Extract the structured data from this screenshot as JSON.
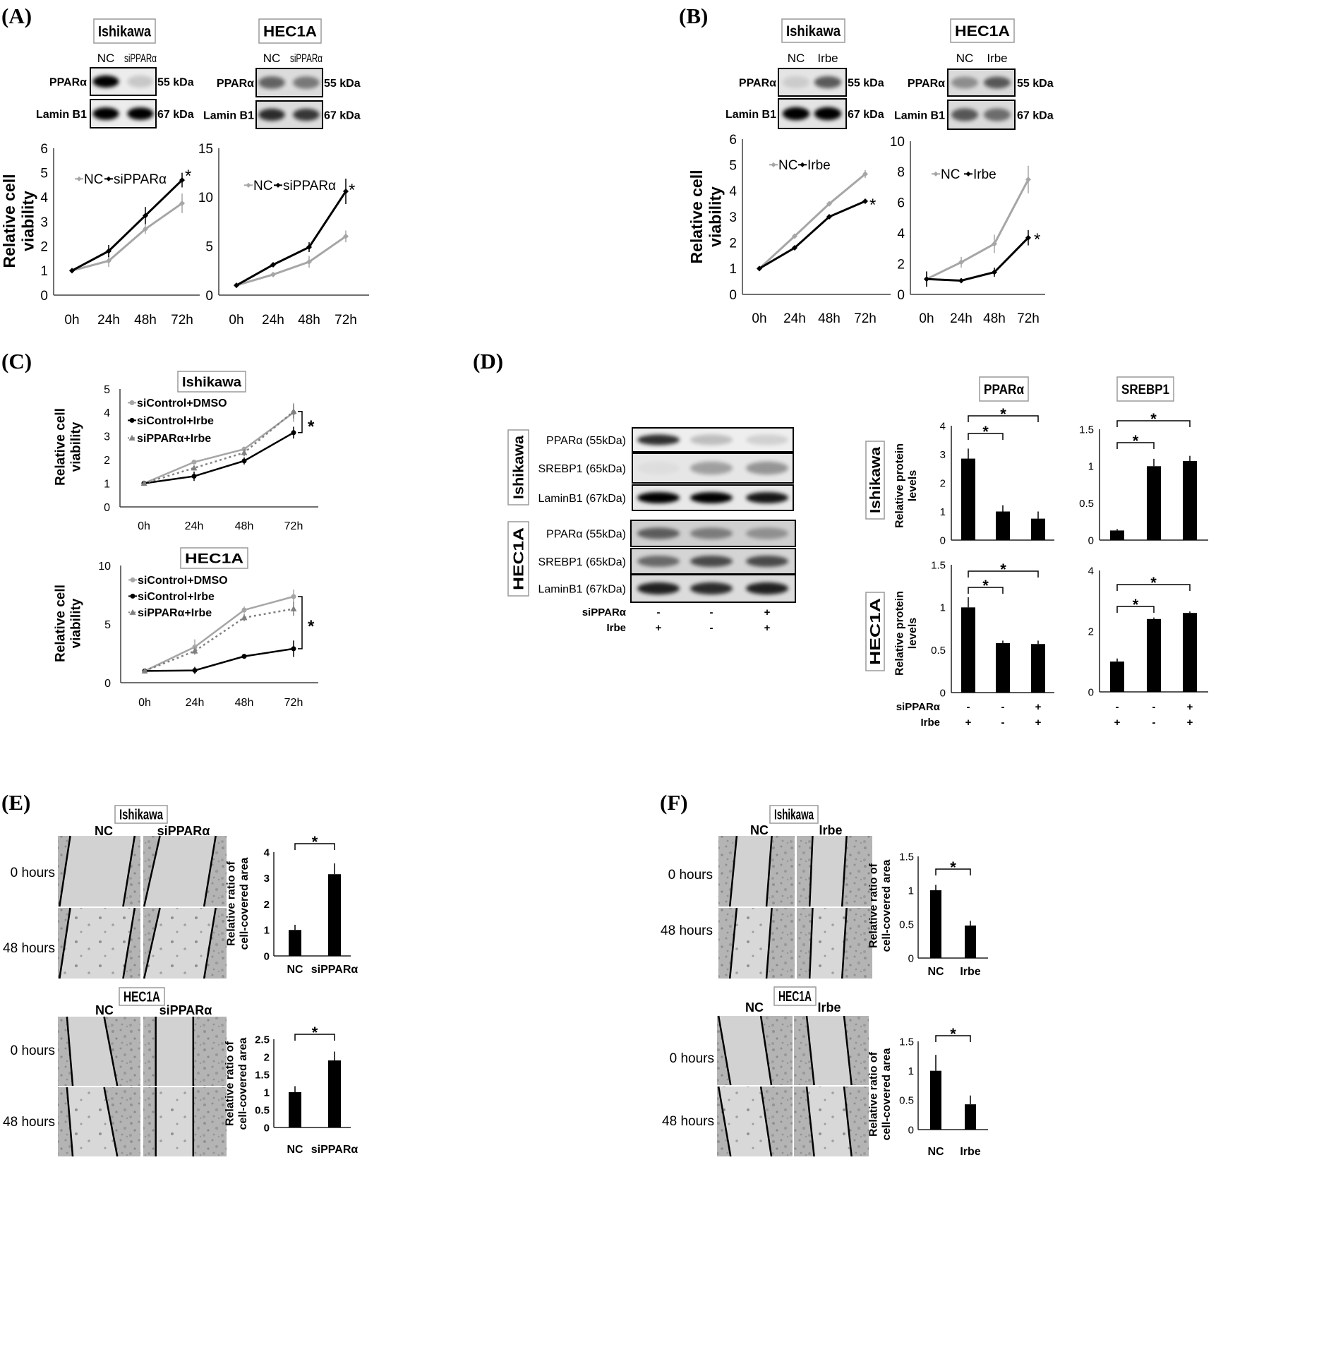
{
  "panels": {
    "A": {
      "label": "(A)",
      "blots": [
        {
          "cell_line": "Ishikawa",
          "lanes": [
            "NC",
            "siPPARα"
          ],
          "rows": [
            {
              "protein": "PPARα",
              "size": "55 kDa",
              "bands": [
                1.0,
                0.15
              ]
            },
            {
              "protein": "Lamin B1",
              "size": "67 kDa",
              "bands": [
                1.0,
                1.0
              ]
            }
          ]
        },
        {
          "cell_line": "HEC1A",
          "lanes": [
            "NC",
            "siPPARα"
          ],
          "rows": [
            {
              "protein": "PPARα",
              "size": "55 kDa",
              "bands": [
                0.55,
                0.45
              ]
            },
            {
              "protein": "Lamin B1",
              "size": "67 kDa",
              "bands": [
                0.8,
                0.75
              ]
            }
          ]
        }
      ]
    },
    "B": {
      "label": "(B)",
      "blots": [
        {
          "cell_line": "Ishikawa",
          "lanes": [
            "NC",
            "Irbe"
          ],
          "rows": [
            {
              "protein": "PPARα",
              "size": "55 kDa",
              "bands": [
                0.1,
                0.6
              ]
            },
            {
              "protein": "Lamin B1",
              "size": "67 kDa",
              "bands": [
                1.0,
                1.0
              ]
            }
          ]
        },
        {
          "cell_line": "HEC1A",
          "lanes": [
            "NC",
            "Irbe"
          ],
          "rows": [
            {
              "protein": "PPARα",
              "size": "55 kDa",
              "bands": [
                0.35,
                0.6
              ]
            },
            {
              "protein": "Lamin B1",
              "size": "67 kDa",
              "bands": [
                0.6,
                0.5
              ]
            }
          ]
        }
      ]
    },
    "C": {
      "label": "(C)",
      "cell_lines": [
        "Ishikawa",
        "HEC1A"
      ]
    },
    "D": {
      "label": "(D)",
      "blot_groups": [
        {
          "cell_line": "Ishikawa",
          "rows": [
            {
              "protein": "PPARα (55kDa)",
              "bands": [
                0.8,
                0.2,
                0.12
              ]
            },
            {
              "protein": "SREBP1 (65kDa)",
              "bands": [
                0.03,
                0.3,
                0.35
              ]
            },
            {
              "protein": "LaminB1 (67kDa)",
              "bands": [
                1.0,
                1.0,
                0.9
              ]
            }
          ]
        },
        {
          "cell_line": "HEC1A",
          "rows": [
            {
              "protein": "PPARα (55kDa)",
              "bands": [
                0.55,
                0.4,
                0.3
              ]
            },
            {
              "protein": "SREBP1 (65kDa)",
              "bands": [
                0.5,
                0.65,
                0.65
              ]
            },
            {
              "protein": "LaminB1 (67kDa)",
              "bands": [
                0.85,
                0.8,
                0.85
              ]
            }
          ]
        }
      ],
      "chart_titles": [
        "PPARα",
        "SREBP1"
      ],
      "row_labels": [
        "Ishikawa",
        "HEC1A"
      ],
      "treatments": [
        {
          "label": "siPPARα",
          "values": [
            "-",
            "-",
            "+"
          ]
        },
        {
          "label": "Irbe",
          "values": [
            "+",
            "-",
            "+"
          ]
        }
      ]
    },
    "E": {
      "label": "(E)",
      "groups": [
        {
          "cell_line": "Ishikawa",
          "conditions": [
            "NC",
            "siPPARα"
          ],
          "timepoints": [
            "0 hours",
            "48 hours"
          ]
        },
        {
          "cell_line": "HEC1A",
          "conditions": [
            "NC",
            "siPPARα"
          ],
          "timepoints": [
            "0 hours",
            "48 hours"
          ]
        }
      ]
    },
    "F": {
      "label": "(F)",
      "groups": [
        {
          "cell_line": "Ishikawa",
          "conditions": [
            "NC",
            "Irbe"
          ],
          "timepoints": [
            "0 hours",
            "48 hours"
          ]
        },
        {
          "cell_line": "HEC1A",
          "conditions": [
            "NC",
            "Irbe"
          ],
          "timepoints": [
            "0 hours",
            "48 hours"
          ]
        }
      ]
    }
  },
  "chart_data": [
    {
      "panel": "A",
      "cell_line": "Ishikawa",
      "type": "line",
      "categories": [
        "0h",
        "24h",
        "48h",
        "72h"
      ],
      "ylabel": [
        "Relative cell",
        "viability"
      ],
      "ylim": [
        0,
        6
      ],
      "yticks": [
        0,
        1,
        2,
        3,
        4,
        5,
        6
      ],
      "series": [
        {
          "name": "NC",
          "color": "#a6a6a6",
          "style": "solid",
          "marker": "diamond",
          "values": [
            1,
            1.4,
            2.7,
            3.75
          ],
          "errors": [
            0.05,
            0.25,
            0.2,
            0.4
          ]
        },
        {
          "name": "siPPARα",
          "color": "#000000",
          "style": "solid",
          "marker": "diamond",
          "values": [
            1,
            1.8,
            3.25,
            4.7
          ],
          "errors": [
            0.05,
            0.25,
            0.35,
            0.3
          ]
        }
      ],
      "significance": "*"
    },
    {
      "panel": "A",
      "cell_line": "HEC1A",
      "type": "line",
      "categories": [
        "0h",
        "24h",
        "48h",
        "72h"
      ],
      "ylim": [
        0,
        15
      ],
      "yticks": [
        0,
        5,
        10,
        15
      ],
      "series": [
        {
          "name": "NC",
          "color": "#a6a6a6",
          "style": "solid",
          "marker": "diamond",
          "values": [
            1,
            2.1,
            3.4,
            6.0
          ],
          "errors": [
            0.05,
            0.1,
            0.6,
            0.6
          ]
        },
        {
          "name": "siPPARα",
          "color": "#000000",
          "style": "solid",
          "marker": "diamond",
          "values": [
            1,
            3.1,
            4.9,
            10.6
          ],
          "errors": [
            0.05,
            0.1,
            0.5,
            1.3
          ]
        }
      ],
      "significance": "*"
    },
    {
      "panel": "B",
      "cell_line": "Ishikawa",
      "type": "line",
      "categories": [
        "0h",
        "24h",
        "48h",
        "72h"
      ],
      "ylabel": [
        "Relative cell",
        "viability"
      ],
      "ylim": [
        0,
        6
      ],
      "yticks": [
        0,
        1,
        2,
        3,
        4,
        5,
        6
      ],
      "series": [
        {
          "name": "NC",
          "color": "#a6a6a6",
          "style": "solid",
          "marker": "diamond",
          "values": [
            1,
            2.25,
            3.5,
            4.65
          ],
          "errors": [
            0.03,
            0.05,
            0.05,
            0.15
          ]
        },
        {
          "name": "Irbe",
          "color": "#000000",
          "style": "solid",
          "marker": "diamond",
          "values": [
            1,
            1.8,
            3.0,
            3.6
          ],
          "errors": [
            0.03,
            0.05,
            0.05,
            0.05
          ]
        }
      ],
      "significance": "*"
    },
    {
      "panel": "B",
      "cell_line": "HEC1A",
      "type": "line",
      "categories": [
        "0h",
        "24h",
        "48h",
        "72h"
      ],
      "ylim": [
        0,
        10
      ],
      "yticks": [
        0,
        2,
        4,
        6,
        8,
        10
      ],
      "series": [
        {
          "name": "NC",
          "color": "#a6a6a6",
          "style": "solid",
          "marker": "diamond",
          "values": [
            1,
            2.1,
            3.3,
            7.5
          ],
          "errors": [
            0.5,
            0.35,
            0.6,
            0.9
          ]
        },
        {
          "name": "Irbe",
          "color": "#000000",
          "style": "solid",
          "marker": "diamond",
          "values": [
            1,
            0.9,
            1.45,
            3.7
          ],
          "errors": [
            0.5,
            0.1,
            0.3,
            0.5
          ]
        }
      ],
      "significance": "*"
    },
    {
      "panel": "C",
      "cell_line": "Ishikawa",
      "type": "line",
      "categories": [
        "0h",
        "24h",
        "48h",
        "72h"
      ],
      "ylabel": [
        "Relative cell",
        "viability"
      ],
      "ylim": [
        0,
        5
      ],
      "yticks": [
        0,
        1,
        2,
        3,
        4,
        5
      ],
      "series": [
        {
          "name": "siControl+DMSO",
          "color": "#a6a6a6",
          "style": "solid",
          "marker": "circle",
          "values": [
            1,
            1.9,
            2.45,
            4.0
          ],
          "errors": [
            0.05,
            0.05,
            0.1,
            0.4
          ]
        },
        {
          "name": "siControl+Irbe",
          "color": "#000000",
          "style": "solid",
          "marker": "circle",
          "values": [
            1,
            1.3,
            1.95,
            3.15
          ],
          "errors": [
            0.05,
            0.2,
            0.15,
            0.25
          ]
        },
        {
          "name": "siPPARα+Irbe",
          "color": "#808080",
          "style": "dotted",
          "marker": "triangle",
          "values": [
            1,
            1.65,
            2.3,
            4.05
          ],
          "errors": [
            0.05,
            0.1,
            0.15,
            0.3
          ]
        }
      ],
      "significance": "*"
    },
    {
      "panel": "C",
      "cell_line": "HEC1A",
      "type": "line",
      "categories": [
        "0h",
        "24h",
        "48h",
        "72h"
      ],
      "ylabel": [
        "Relative cell",
        "viability"
      ],
      "ylim": [
        0,
        10
      ],
      "yticks": [
        0,
        5,
        10
      ],
      "series": [
        {
          "name": "siControl+DMSO",
          "color": "#a6a6a6",
          "style": "solid",
          "marker": "circle",
          "values": [
            1,
            3.05,
            6.2,
            7.35
          ],
          "errors": [
            0.2,
            0.65,
            0.3,
            0.6
          ]
        },
        {
          "name": "siControl+Irbe",
          "color": "#000000",
          "style": "solid",
          "marker": "circle",
          "values": [
            1,
            1.05,
            2.25,
            2.9
          ],
          "errors": [
            0.2,
            0.3,
            0.1,
            0.7
          ]
        },
        {
          "name": "siPPARα+Irbe",
          "color": "#808080",
          "style": "dotted",
          "marker": "triangle",
          "values": [
            1,
            2.7,
            5.55,
            6.3
          ],
          "errors": [
            0.2,
            0.3,
            0.3,
            0.6
          ]
        }
      ],
      "significance": "*"
    },
    {
      "panel": "D",
      "cell_line": "Ishikawa",
      "protein": "PPARα",
      "type": "bar",
      "ylabel": [
        "Relative protein",
        "levels"
      ],
      "ylim": [
        0,
        4
      ],
      "yticks": [
        0,
        1,
        2,
        3,
        4
      ],
      "values": [
        2.85,
        1.0,
        0.75
      ],
      "errors": [
        0.35,
        0.22,
        0.25
      ],
      "brackets": [
        {
          "from": 0,
          "to": 1,
          "label": "*"
        },
        {
          "from": 0,
          "to": 2,
          "label": "*"
        }
      ]
    },
    {
      "panel": "D",
      "cell_line": "Ishikawa",
      "protein": "SREBP1",
      "type": "bar",
      "ylim": [
        0,
        1.5
      ],
      "yticks": [
        0,
        0.5,
        1,
        1.5
      ],
      "values": [
        0.13,
        1.0,
        1.07
      ],
      "errors": [
        0.02,
        0.1,
        0.07
      ],
      "brackets": [
        {
          "from": 0,
          "to": 1,
          "label": "*"
        },
        {
          "from": 0,
          "to": 2,
          "label": "*"
        }
      ]
    },
    {
      "panel": "D",
      "cell_line": "HEC1A",
      "protein": "PPARα",
      "type": "bar",
      "ylabel": [
        "Relative protein",
        "levels"
      ],
      "ylim": [
        0,
        1.5
      ],
      "yticks": [
        0,
        0.5,
        1,
        1.5
      ],
      "values": [
        1.0,
        0.58,
        0.57
      ],
      "errors": [
        0.12,
        0.03,
        0.04
      ],
      "brackets": [
        {
          "from": 0,
          "to": 1,
          "label": "*"
        },
        {
          "from": 0,
          "to": 2,
          "label": "*"
        }
      ]
    },
    {
      "panel": "D",
      "cell_line": "HEC1A",
      "protein": "SREBP1",
      "type": "bar",
      "ylim": [
        0,
        4
      ],
      "yticks": [
        0,
        2,
        4
      ],
      "values": [
        1.0,
        2.4,
        2.6
      ],
      "errors": [
        0.1,
        0.05,
        0.05
      ],
      "brackets": [
        {
          "from": 0,
          "to": 1,
          "label": "*"
        },
        {
          "from": 0,
          "to": 2,
          "label": "*"
        }
      ]
    },
    {
      "panel": "E",
      "cell_line": "Ishikawa",
      "type": "bar",
      "categories": [
        "NC",
        "siPPARα"
      ],
      "ylabel": [
        "Relative ratio of",
        "cell-covered area"
      ],
      "ylim": [
        0,
        4
      ],
      "yticks": [
        0,
        1,
        2,
        3,
        4
      ],
      "values": [
        1.0,
        3.15
      ],
      "errors": [
        0.2,
        0.42
      ],
      "brackets": [
        {
          "from": 0,
          "to": 1,
          "label": "*"
        }
      ]
    },
    {
      "panel": "E",
      "cell_line": "HEC1A",
      "type": "bar",
      "categories": [
        "NC",
        "siPPARα"
      ],
      "ylabel": [
        "Relative ratio of",
        "cell-covered area"
      ],
      "ylim": [
        0,
        2.5
      ],
      "yticks": [
        0,
        0.5,
        1,
        1.5,
        2,
        2.5
      ],
      "values": [
        1.0,
        1.9
      ],
      "errors": [
        0.17,
        0.25
      ],
      "brackets": [
        {
          "from": 0,
          "to": 1,
          "label": "*"
        }
      ]
    },
    {
      "panel": "F",
      "cell_line": "Ishikawa",
      "type": "bar",
      "categories": [
        "NC",
        "Irbe"
      ],
      "ylabel": [
        "Relative ratio of",
        "cell-covered area"
      ],
      "ylim": [
        0,
        1.5
      ],
      "yticks": [
        0,
        0.5,
        1,
        1.5
      ],
      "values": [
        1.0,
        0.48
      ],
      "errors": [
        0.08,
        0.07
      ],
      "brackets": [
        {
          "from": 0,
          "to": 1,
          "label": "*"
        }
      ]
    },
    {
      "panel": "F",
      "cell_line": "HEC1A",
      "type": "bar",
      "categories": [
        "NC",
        "Irbe"
      ],
      "ylabel": [
        "Relative ratio of",
        "cell-covered area"
      ],
      "ylim": [
        0,
        1.5
      ],
      "yticks": [
        0,
        0.5,
        1,
        1.5
      ],
      "values": [
        1.0,
        0.43
      ],
      "errors": [
        0.27,
        0.15
      ],
      "brackets": [
        {
          "from": 0,
          "to": 1,
          "label": "*"
        }
      ]
    }
  ]
}
